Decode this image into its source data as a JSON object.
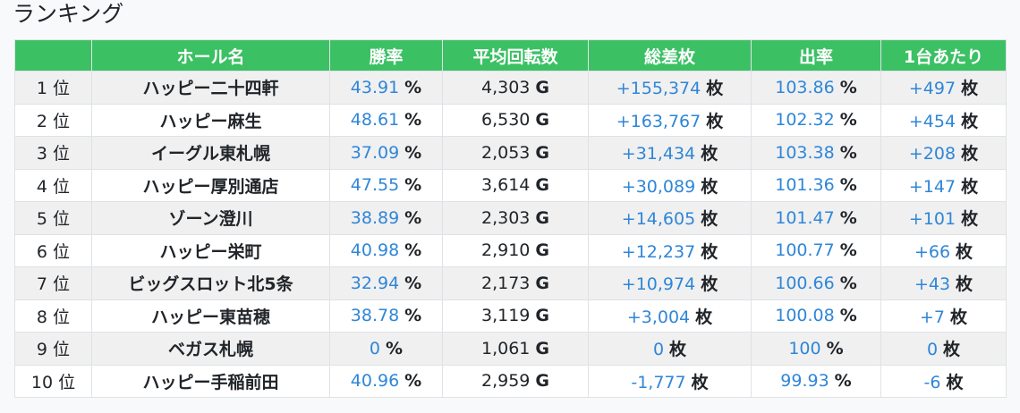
{
  "page": {
    "title": "ランキング"
  },
  "table": {
    "headers": [
      "",
      "ホール名",
      "勝率",
      "平均回転数",
      "総差枚",
      "出率",
      "1台あたり"
    ],
    "units": {
      "win_rate": "%",
      "spins": "G",
      "diff": "枚",
      "payout": "%",
      "per_machine": "枚"
    },
    "rows": [
      {
        "rank": "1 位",
        "hall": "ハッピー二十四軒",
        "win_rate": "43.91",
        "spins": "4,303",
        "diff": "+155,374",
        "payout": "103.86",
        "per_machine": "+497"
      },
      {
        "rank": "2 位",
        "hall": "ハッピー麻生",
        "win_rate": "48.61",
        "spins": "6,530",
        "diff": "+163,767",
        "payout": "102.32",
        "per_machine": "+454"
      },
      {
        "rank": "3 位",
        "hall": "イーグル東札幌",
        "win_rate": "37.09",
        "spins": "2,053",
        "diff": "+31,434",
        "payout": "103.38",
        "per_machine": "+208"
      },
      {
        "rank": "4 位",
        "hall": "ハッピー厚別通店",
        "win_rate": "47.55",
        "spins": "3,614",
        "diff": "+30,089",
        "payout": "101.36",
        "per_machine": "+147"
      },
      {
        "rank": "5 位",
        "hall": "ゾーン澄川",
        "win_rate": "38.89",
        "spins": "2,303",
        "diff": "+14,605",
        "payout": "101.47",
        "per_machine": "+101"
      },
      {
        "rank": "6 位",
        "hall": "ハッピー栄町",
        "win_rate": "40.98",
        "spins": "2,910",
        "diff": "+12,237",
        "payout": "100.77",
        "per_machine": "+66"
      },
      {
        "rank": "7 位",
        "hall": "ビッグスロット北5条",
        "win_rate": "32.94",
        "spins": "2,173",
        "diff": "+10,974",
        "payout": "100.66",
        "per_machine": "+43"
      },
      {
        "rank": "8 位",
        "hall": "ハッピー東苗穂",
        "win_rate": "38.78",
        "spins": "3,119",
        "diff": "+3,004",
        "payout": "100.08",
        "per_machine": "+7"
      },
      {
        "rank": "9 位",
        "hall": "ベガス札幌",
        "win_rate": "0",
        "spins": "1,061",
        "diff": "0",
        "payout": "100",
        "per_machine": "0"
      },
      {
        "rank": "10 位",
        "hall": "ハッピー手稲前田",
        "win_rate": "40.96",
        "spins": "2,959",
        "diff": "-1,777",
        "payout": "99.93",
        "per_machine": "-6"
      }
    ]
  }
}
